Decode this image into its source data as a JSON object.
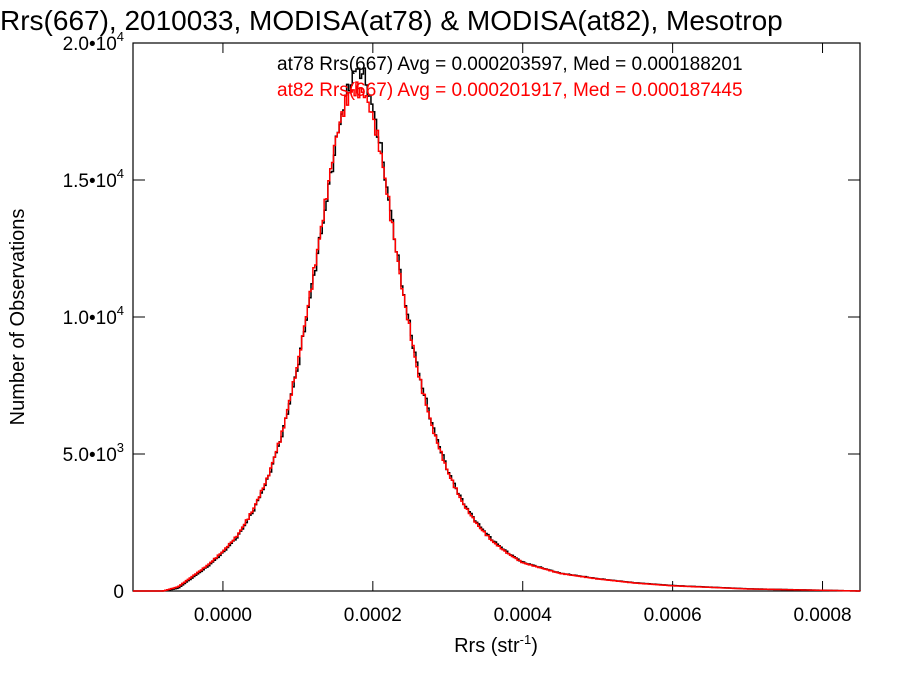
{
  "chart_data": {
    "type": "line",
    "title": "Rrs(667), 2010033, MODISA(at78) & MODISA(at82), Mesotrop",
    "xlabel": "Rrs (str",
    "xlabel_exp": "-1",
    "xlabel_close": ")",
    "ylabel": "Number of Observations",
    "xlim": [
      -0.00012,
      0.00085
    ],
    "ylim": [
      0,
      20000
    ],
    "xticks": [
      {
        "value": 0.0,
        "label": "0.0000"
      },
      {
        "value": 0.0002,
        "label": "0.0002"
      },
      {
        "value": 0.0004,
        "label": "0.0004"
      },
      {
        "value": 0.0006,
        "label": "0.0006"
      },
      {
        "value": 0.0008,
        "label": "0.0008"
      }
    ],
    "yticks": [
      {
        "value": 0,
        "mant": "0",
        "exp": ""
      },
      {
        "value": 5000,
        "mant": "5.0•10",
        "exp": "3"
      },
      {
        "value": 10000,
        "mant": "1.0•10",
        "exp": "4"
      },
      {
        "value": 15000,
        "mant": "1.5•10",
        "exp": "4"
      },
      {
        "value": 20000,
        "mant": "2.0•10",
        "exp": "4"
      }
    ],
    "grid": false,
    "legend_position": "top-right",
    "series": [
      {
        "name": "at78",
        "color": "#000000",
        "legend_text": "at78 Rrs(667) Avg = 0.000203597, Med = 0.000188201",
        "x": [
          -0.00012,
          -8e-05,
          -6e-05,
          -4e-05,
          -2e-05,
          0.0,
          2e-05,
          4e-05,
          6e-05,
          8e-05,
          0.0001,
          0.00012,
          0.00014,
          0.00015,
          0.00016,
          0.00017,
          0.00018,
          0.00019,
          0.0002,
          0.00021,
          0.00022,
          0.00024,
          0.00026,
          0.00028,
          0.0003,
          0.00032,
          0.00034,
          0.00036,
          0.00038,
          0.0004,
          0.00045,
          0.0005,
          0.00055,
          0.0006,
          0.0007,
          0.00085
        ],
        "y": [
          0,
          0,
          100,
          500,
          900,
          1400,
          2000,
          2900,
          4100,
          5800,
          8200,
          11300,
          14500,
          16200,
          17600,
          18600,
          19100,
          18700,
          17600,
          16300,
          14500,
          11000,
          8100,
          6000,
          4400,
          3250,
          2450,
          1850,
          1400,
          1050,
          650,
          450,
          300,
          200,
          80,
          0
        ]
      },
      {
        "name": "at82",
        "color": "#ff0000",
        "legend_text": "at82 Rrs(667) Avg = 0.000201917, Med = 0.000187445",
        "x": [
          -0.00012,
          -8e-05,
          -6e-05,
          -4e-05,
          -2e-05,
          0.0,
          2e-05,
          4e-05,
          6e-05,
          8e-05,
          0.0001,
          0.00012,
          0.00014,
          0.00015,
          0.00016,
          0.00017,
          0.00018,
          0.00019,
          0.0002,
          0.00021,
          0.00022,
          0.00024,
          0.00026,
          0.00028,
          0.0003,
          0.00032,
          0.00034,
          0.00036,
          0.00038,
          0.0004,
          0.00045,
          0.0005,
          0.00055,
          0.0006,
          0.0007,
          0.00085
        ],
        "y": [
          0,
          0,
          150,
          550,
          950,
          1450,
          2050,
          2950,
          4150,
          5850,
          8300,
          11400,
          14700,
          16400,
          17500,
          18200,
          18300,
          18100,
          17300,
          16100,
          14400,
          10900,
          8000,
          5900,
          4350,
          3200,
          2400,
          1800,
          1370,
          1030,
          640,
          440,
          290,
          190,
          75,
          0
        ]
      }
    ]
  }
}
